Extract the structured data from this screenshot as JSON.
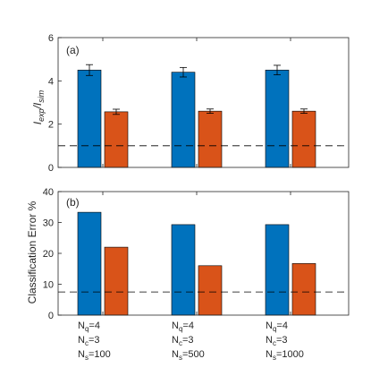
{
  "chart_data": [
    {
      "type": "bar",
      "panel_label": "(a)",
      "ylabel_main": "I",
      "ylabel_sub1": "exp",
      "ylabel_sep": "/I",
      "ylabel_sub2": "sim",
      "ylim": [
        0,
        6
      ],
      "yticks": [
        "0",
        "2",
        "4",
        "6"
      ],
      "grid": false,
      "group_count": 3,
      "series": [
        {
          "values": [
            4.5,
            4.4,
            4.5
          ],
          "errors": [
            0.25,
            0.22,
            0.22
          ],
          "color": "#0072BD"
        },
        {
          "values": [
            2.57,
            2.6,
            2.6
          ],
          "errors": [
            0.12,
            0.1,
            0.1
          ],
          "color": "#D95319"
        }
      ],
      "reference_line": 1.0
    },
    {
      "type": "bar",
      "panel_label": "(b)",
      "ylabel": "Classification Error %",
      "ylim": [
        0,
        40
      ],
      "yticks": [
        "0",
        "10",
        "20",
        "30",
        "40"
      ],
      "grid": false,
      "group_count": 3,
      "series": [
        {
          "values": [
            33.3,
            29.3,
            29.3
          ],
          "color": "#0072BD"
        },
        {
          "values": [
            22.0,
            16.0,
            16.7
          ],
          "color": "#D95319"
        }
      ],
      "reference_line": 7.5,
      "categories": [
        {
          "q": "4",
          "c": "3",
          "s": "100"
        },
        {
          "q": "4",
          "c": "3",
          "s": "500"
        },
        {
          "q": "4",
          "c": "3",
          "s": "1000"
        }
      ]
    }
  ],
  "category_labels": {
    "n": "N",
    "q_sub": "q",
    "c_sub": "c",
    "s_sub": "s",
    "eq": "="
  },
  "colors": {
    "blue": "#0072BD",
    "orange": "#D95319"
  }
}
